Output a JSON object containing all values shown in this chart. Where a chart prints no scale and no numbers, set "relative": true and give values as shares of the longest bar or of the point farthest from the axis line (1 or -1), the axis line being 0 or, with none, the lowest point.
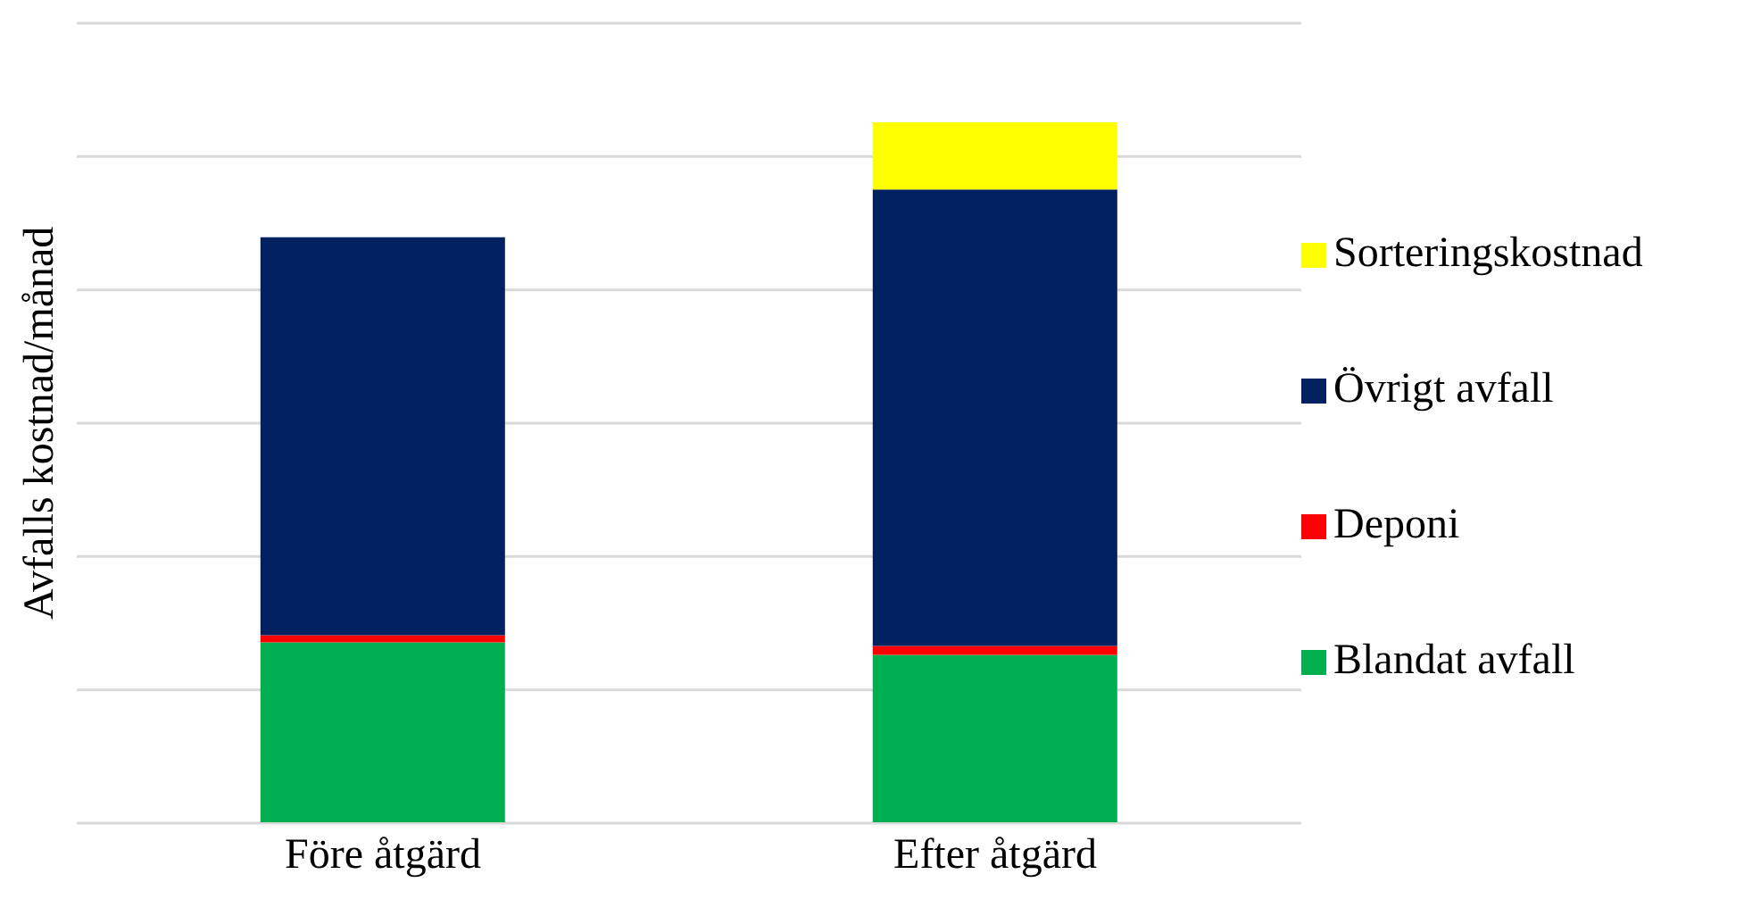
{
  "chart_data": {
    "type": "bar",
    "stacked": true,
    "relative": true,
    "ylabel": "Avfalls kostnad/månad",
    "categories": [
      "Före åtgärd",
      "Efter åtgärd"
    ],
    "series": [
      {
        "name": "Blandat avfall",
        "color": "#00b050",
        "values": [
          0.258,
          0.24
        ]
      },
      {
        "name": "Deponi",
        "color": "#ff0000",
        "values": [
          0.01,
          0.013
        ]
      },
      {
        "name": "Övrigt avfall",
        "color": "#002060",
        "values": [
          0.568,
          0.651
        ]
      },
      {
        "name": "Sorteringskostnad",
        "color": "#ffff00",
        "values": [
          null,
          0.096
        ]
      }
    ],
    "grid": "y",
    "legend": "right"
  }
}
